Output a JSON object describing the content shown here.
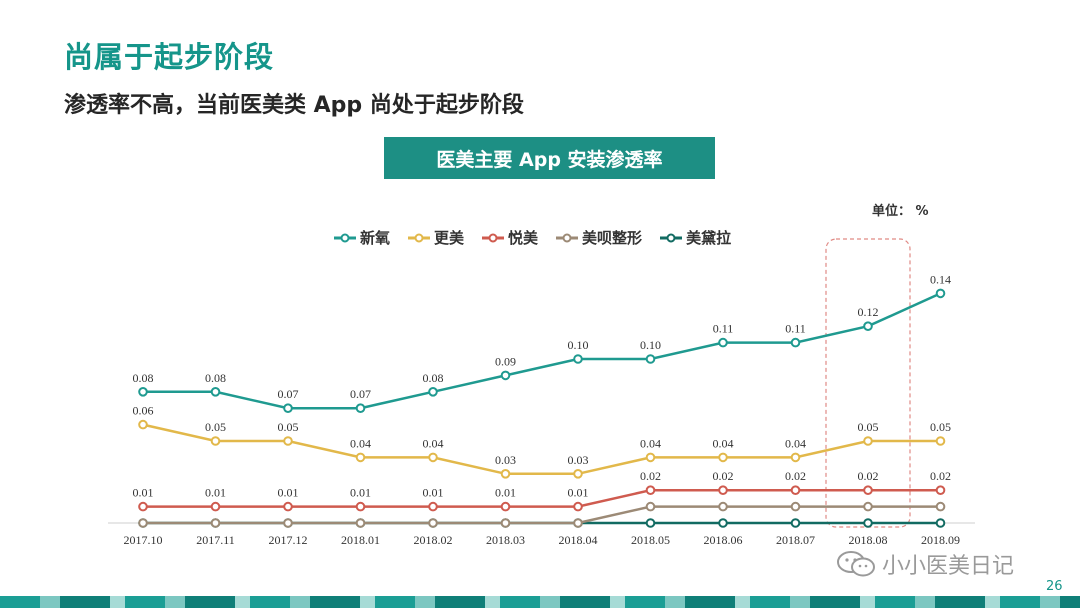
{
  "slide": {
    "title": "尚属于起步阶段",
    "subtitle": "渗透率不高，当前医美类 App 尚处于起步阶段",
    "page_number": "26",
    "watermark": "小小医美日记"
  },
  "chart_data": {
    "type": "line",
    "title": "医美主要  App 安装渗透率",
    "unit_label": "单位： %",
    "categories": [
      "2017.10",
      "2017.11",
      "2017.12",
      "2018.01",
      "2018.02",
      "2018.03",
      "2018.04",
      "2018.05",
      "2018.06",
      "2018.07",
      "2018.08",
      "2018.09"
    ],
    "ylim": [
      0,
      0.14
    ],
    "highlight_category": "2018.08",
    "series": [
      {
        "name": "新氧",
        "color": "#1f9a90",
        "values": [
          0.08,
          0.08,
          0.07,
          0.07,
          0.08,
          0.09,
          0.1,
          0.1,
          0.11,
          0.11,
          0.12,
          0.14
        ],
        "labeled": true
      },
      {
        "name": "更美",
        "color": "#e2b84a",
        "values": [
          0.06,
          0.05,
          0.05,
          0.04,
          0.04,
          0.03,
          0.03,
          0.04,
          0.04,
          0.04,
          0.05,
          0.05
        ],
        "labeled": true
      },
      {
        "name": "悦美",
        "color": "#cf5b4f",
        "values": [
          0.01,
          0.01,
          0.01,
          0.01,
          0.01,
          0.01,
          0.01,
          0.02,
          0.02,
          0.02,
          0.02,
          0.02
        ],
        "labeled": true
      },
      {
        "name": "美呗整形",
        "color": "#9c8a76",
        "values": [
          0,
          0,
          0,
          0,
          0,
          0,
          0,
          0.01,
          0.01,
          0.01,
          0.01,
          0.01
        ],
        "labeled": false
      },
      {
        "name": "美黛拉",
        "color": "#126b62",
        "values": [
          0,
          0,
          0,
          0,
          0,
          0,
          0,
          0,
          0,
          0,
          0,
          0
        ],
        "labeled": false
      }
    ]
  }
}
